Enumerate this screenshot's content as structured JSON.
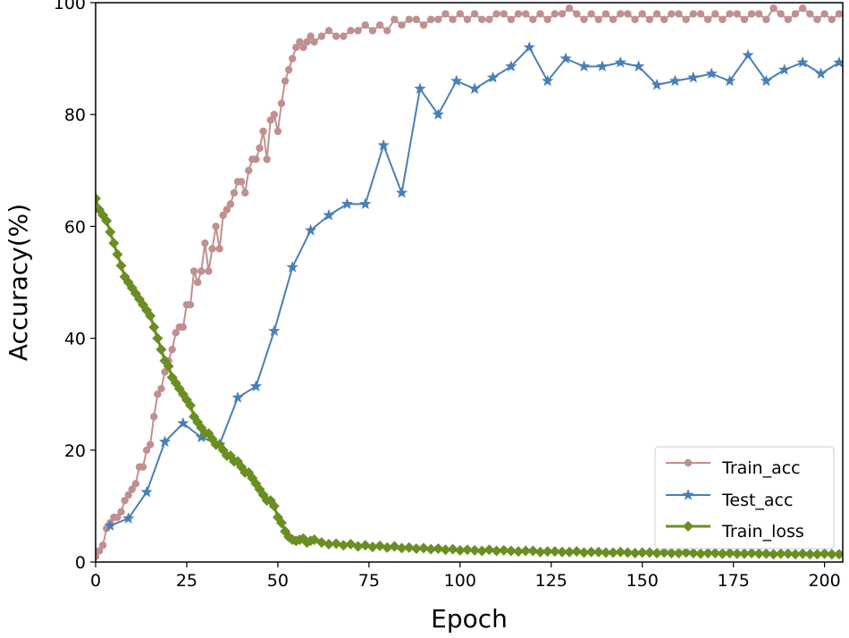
{
  "chart_data": {
    "type": "line",
    "title": "",
    "xlabel": "Epoch",
    "ylabel": "Accuracy(%)",
    "xlim": [
      0,
      205
    ],
    "ylim": [
      0,
      100
    ],
    "xticks": [
      0,
      25,
      50,
      75,
      100,
      125,
      150,
      175,
      200
    ],
    "yticks": [
      0,
      20,
      40,
      60,
      80,
      100
    ],
    "grid": false,
    "legend_position": "bottom-right",
    "series": [
      {
        "name": "Train_acc",
        "color": "#c09090",
        "marker": "circle",
        "x": [
          0,
          1,
          2,
          3,
          4,
          5,
          6,
          7,
          8,
          9,
          10,
          11,
          12,
          13,
          14,
          15,
          16,
          17,
          18,
          19,
          20,
          21,
          22,
          23,
          24,
          25,
          26,
          27,
          28,
          29,
          30,
          31,
          32,
          33,
          34,
          35,
          36,
          37,
          38,
          39,
          40,
          41,
          42,
          43,
          44,
          45,
          46,
          47,
          48,
          49,
          50,
          51,
          52,
          53,
          54,
          55,
          56,
          57,
          58,
          59,
          60,
          62,
          64,
          66,
          68,
          70,
          72,
          74,
          76,
          78,
          80,
          82,
          84,
          86,
          88,
          90,
          92,
          94,
          96,
          98,
          100,
          102,
          104,
          106,
          108,
          110,
          112,
          114,
          116,
          118,
          120,
          122,
          124,
          126,
          128,
          130,
          132,
          134,
          136,
          138,
          140,
          142,
          144,
          146,
          148,
          150,
          152,
          154,
          156,
          158,
          160,
          162,
          164,
          166,
          168,
          170,
          172,
          174,
          176,
          178,
          180,
          182,
          184,
          186,
          188,
          190,
          192,
          194,
          196,
          198,
          200,
          202,
          204
        ],
        "values": [
          1,
          2,
          3,
          6,
          7,
          8,
          8,
          9,
          11,
          12,
          13,
          14,
          17,
          17,
          20,
          21,
          26,
          30,
          31,
          34,
          36,
          38,
          41,
          42,
          42,
          46,
          46,
          52,
          50,
          52,
          57,
          52,
          56,
          60,
          56,
          62,
          63,
          64,
          66,
          68,
          68,
          66,
          70,
          72,
          72,
          74,
          77,
          72,
          79,
          80,
          77,
          82,
          86,
          88,
          90,
          92,
          93,
          92,
          93,
          94,
          93,
          94,
          95,
          94,
          94,
          95,
          95,
          96,
          95,
          96,
          95,
          97,
          96,
          97,
          97,
          96,
          97,
          97,
          98,
          97,
          98,
          97,
          98,
          97,
          97,
          98,
          98,
          97,
          98,
          98,
          97,
          98,
          97,
          98,
          98,
          99,
          98,
          97,
          98,
          97,
          98,
          97,
          98,
          98,
          97,
          98,
          97,
          98,
          97,
          98,
          98,
          97,
          98,
          98,
          97,
          98,
          97,
          98,
          98,
          97,
          98,
          98,
          97,
          99,
          98,
          97,
          98,
          99,
          98,
          97,
          98,
          97,
          98
        ]
      },
      {
        "name": "Test_acc",
        "color": "#4a7fb5",
        "marker": "star",
        "x": [
          4,
          9,
          14,
          19,
          24,
          29,
          34,
          39,
          44,
          49,
          54,
          59,
          64,
          69,
          74,
          79,
          84,
          89,
          94,
          99,
          104,
          109,
          114,
          119,
          124,
          129,
          134,
          139,
          144,
          149,
          154,
          159,
          164,
          169,
          174,
          179,
          184,
          189,
          194,
          199,
          204
        ],
        "values": [
          6.5,
          7.8,
          12.5,
          21.5,
          24.8,
          22.3,
          21,
          29.4,
          31.4,
          41.3,
          52.7,
          59.3,
          62,
          64,
          64,
          74.5,
          66,
          84.6,
          80,
          86,
          84.6,
          86.6,
          88.6,
          92,
          86,
          90,
          88.6,
          88.6,
          89.3,
          88.6,
          85.3,
          86,
          86.6,
          87.3,
          86,
          90.6,
          86,
          88,
          89.3,
          87.3,
          89.3
        ]
      },
      {
        "name": "Train_loss",
        "color": "#6b8e23",
        "marker": "diamond",
        "x": [
          0,
          1,
          2,
          3,
          4,
          5,
          6,
          7,
          8,
          9,
          10,
          11,
          12,
          13,
          14,
          15,
          16,
          17,
          18,
          19,
          20,
          21,
          22,
          23,
          24,
          25,
          26,
          27,
          28,
          29,
          30,
          31,
          32,
          33,
          34,
          35,
          36,
          37,
          38,
          39,
          40,
          41,
          42,
          43,
          44,
          45,
          46,
          47,
          48,
          49,
          50,
          51,
          52,
          53,
          54,
          55,
          56,
          57,
          58,
          59,
          60,
          62,
          64,
          66,
          68,
          70,
          72,
          74,
          76,
          78,
          80,
          82,
          84,
          86,
          88,
          90,
          92,
          94,
          96,
          98,
          100,
          102,
          104,
          106,
          108,
          110,
          112,
          114,
          116,
          118,
          120,
          122,
          124,
          126,
          128,
          130,
          132,
          134,
          136,
          138,
          140,
          142,
          144,
          146,
          148,
          150,
          152,
          154,
          156,
          158,
          160,
          162,
          164,
          166,
          168,
          170,
          172,
          174,
          176,
          178,
          180,
          182,
          184,
          186,
          188,
          190,
          192,
          194,
          196,
          198,
          200,
          202,
          204
        ],
        "values": [
          65,
          63,
          62,
          61,
          59,
          57,
          55,
          53,
          51,
          50,
          49,
          48,
          47,
          46,
          45,
          44,
          42,
          40,
          38,
          36,
          35,
          33,
          32,
          31,
          30,
          29,
          28,
          26,
          25,
          24,
          23,
          23,
          22,
          21,
          21,
          20,
          19,
          19,
          18,
          18,
          17,
          16,
          16,
          15,
          14,
          13,
          12,
          11,
          11,
          10,
          8,
          7,
          5.5,
          4.5,
          4,
          3.8,
          4,
          4.2,
          3.5,
          3.8,
          4,
          3.5,
          3.2,
          3.3,
          3,
          3.2,
          2.8,
          3,
          2.7,
          2.9,
          2.6,
          2.8,
          2.5,
          2.6,
          2.4,
          2.5,
          2.3,
          2.4,
          2.2,
          2.3,
          2.1,
          2.2,
          2.1,
          2,
          2.2,
          2,
          2.1,
          2,
          1.9,
          2,
          2,
          1.8,
          1.9,
          1.9,
          1.8,
          1.8,
          1.9,
          1.7,
          1.8,
          1.8,
          1.7,
          1.7,
          1.8,
          1.7,
          1.6,
          1.7,
          1.7,
          1.6,
          1.7,
          1.6,
          1.6,
          1.7,
          1.6,
          1.5,
          1.6,
          1.6,
          1.5,
          1.6,
          1.5,
          1.5,
          1.6,
          1.5,
          1.5,
          1.4,
          1.5,
          1.5,
          1.4,
          1.5,
          1.4,
          1.4,
          1.5,
          1.4,
          1.4
        ]
      }
    ]
  }
}
